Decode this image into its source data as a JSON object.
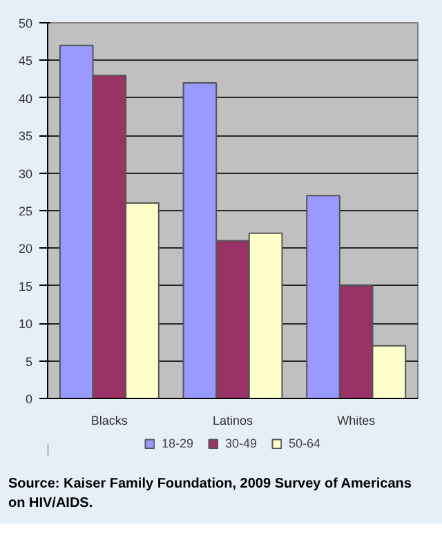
{
  "chart_data": {
    "type": "bar",
    "categories": [
      "Blacks",
      "Latinos",
      "Whites"
    ],
    "series": [
      {
        "name": "18-29",
        "color": "#9999ff",
        "values": [
          47,
          42,
          27
        ]
      },
      {
        "name": "30-49",
        "color": "#993366",
        "values": [
          43,
          21,
          15
        ]
      },
      {
        "name": "50-64",
        "color": "#ffffcc",
        "values": [
          26,
          22,
          7
        ]
      }
    ],
    "ylim": [
      0,
      50
    ],
    "yticks": [
      0,
      5,
      10,
      15,
      20,
      25,
      30,
      35,
      40,
      45,
      50
    ],
    "grid": "y",
    "legend": "bottom",
    "annotations": [
      "Source: Kaiser Family Foundation, 2009 Survey of Americans on HIV/AIDS."
    ]
  }
}
